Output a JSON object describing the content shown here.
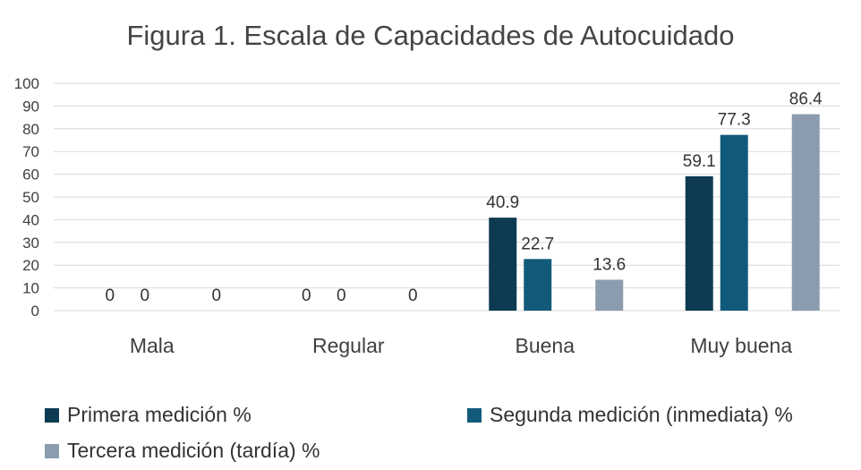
{
  "chart_data": {
    "type": "bar",
    "title": "Figura 1. Escala de Capacidades de Autocuidado",
    "categories": [
      "Mala",
      "Regular",
      "Buena",
      "Muy buena"
    ],
    "series": [
      {
        "name": "Primera medición %",
        "color": "#0d3b52",
        "values": [
          0,
          0,
          40.9,
          59.1
        ]
      },
      {
        "name": "Segunda medición (inmediata) %",
        "color": "#125a7a",
        "values": [
          0,
          0,
          22.7,
          77.3
        ]
      },
      {
        "name": "Tercera medición (tardía) %",
        "color": "#8b9cae",
        "values": [
          0,
          0,
          13.6,
          86.4
        ]
      }
    ],
    "ylim": [
      0,
      100
    ],
    "yticks": [
      0,
      10,
      20,
      30,
      40,
      50,
      60,
      70,
      80,
      90,
      100
    ],
    "grid": true,
    "legend_position": "bottom",
    "data_labels": true
  }
}
